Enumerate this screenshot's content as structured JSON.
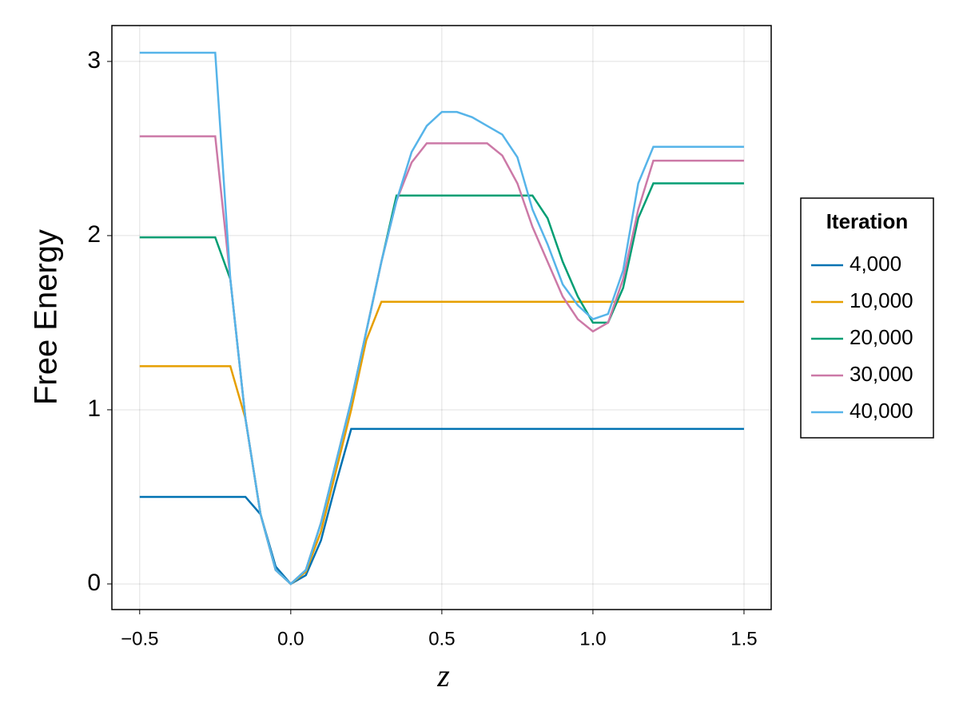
{
  "chart_data": {
    "type": "line",
    "xlabel": "z",
    "ylabel": "Free Energy",
    "legend_title": "Iteration",
    "legend": "right",
    "grid": true,
    "xlim": [
      -0.592,
      1.59
    ],
    "ylim": [
      -0.147,
      3.206
    ],
    "xticks": [
      {
        "value": -0.5,
        "label": "−0.5"
      },
      {
        "value": 0,
        "label": "0.0"
      },
      0.5,
      {
        "value": 1,
        "label": "1.0"
      },
      1.5
    ],
    "yticks": [
      0,
      1,
      2,
      3
    ],
    "x": [
      -0.5,
      -0.45,
      -0.4,
      -0.35,
      -0.3,
      -0.25,
      -0.2,
      -0.15,
      -0.1,
      -0.05,
      0,
      0.05,
      0.1,
      0.15,
      0.2,
      0.25,
      0.3,
      0.35,
      0.4,
      0.45,
      0.5,
      0.55,
      0.6,
      0.65,
      0.7,
      0.75,
      0.8,
      0.85,
      0.9,
      0.95,
      1.0,
      1.05,
      1.1,
      1.15,
      1.2,
      1.25,
      1.3,
      1.35,
      1.4,
      1.45,
      1.5
    ],
    "series": [
      {
        "name": "4,000",
        "color": "#0072b2",
        "values": [
          0.5,
          0.5,
          0.5,
          0.5,
          0.5,
          0.5,
          0.5,
          0.5,
          0.4,
          0.1,
          0,
          0.05,
          0.25,
          0.58,
          0.89,
          0.89,
          0.89,
          0.89,
          0.89,
          0.89,
          0.89,
          0.89,
          0.89,
          0.89,
          0.89,
          0.89,
          0.89,
          0.89,
          0.89,
          0.89,
          0.89,
          0.89,
          0.89,
          0.89,
          0.89,
          0.89,
          0.89,
          0.89,
          0.89,
          0.89,
          0.89
        ]
      },
      {
        "name": "10,000",
        "color": "#e69f00",
        "values": [
          1.25,
          1.25,
          1.25,
          1.25,
          1.25,
          1.25,
          1.25,
          0.95,
          0.4,
          0.08,
          0,
          0.07,
          0.3,
          0.65,
          1.0,
          1.4,
          1.62,
          1.62,
          1.62,
          1.62,
          1.62,
          1.62,
          1.62,
          1.62,
          1.62,
          1.62,
          1.62,
          1.62,
          1.62,
          1.62,
          1.62,
          1.62,
          1.62,
          1.62,
          1.62,
          1.62,
          1.62,
          1.62,
          1.62,
          1.62,
          1.62
        ]
      },
      {
        "name": "20,000",
        "color": "#009e73",
        "values": [
          1.99,
          1.99,
          1.99,
          1.99,
          1.99,
          1.99,
          1.75,
          0.95,
          0.4,
          0.08,
          0,
          0.08,
          0.35,
          0.7,
          1.05,
          1.45,
          1.85,
          2.23,
          2.23,
          2.23,
          2.23,
          2.23,
          2.23,
          2.23,
          2.23,
          2.23,
          2.23,
          2.1,
          1.85,
          1.65,
          1.5,
          1.5,
          1.7,
          2.1,
          2.3,
          2.3,
          2.3,
          2.3,
          2.3,
          2.3,
          2.3
        ]
      },
      {
        "name": "30,000",
        "color": "#cc79a7",
        "values": [
          2.57,
          2.57,
          2.57,
          2.57,
          2.57,
          2.57,
          1.75,
          0.95,
          0.4,
          0.08,
          0,
          0.08,
          0.35,
          0.7,
          1.05,
          1.45,
          1.85,
          2.2,
          2.42,
          2.53,
          2.53,
          2.53,
          2.53,
          2.53,
          2.46,
          2.3,
          2.05,
          1.85,
          1.65,
          1.52,
          1.45,
          1.5,
          1.75,
          2.15,
          2.43,
          2.43,
          2.43,
          2.43,
          2.43,
          2.43,
          2.43
        ]
      },
      {
        "name": "40,000",
        "color": "#56b4e9",
        "values": [
          3.05,
          3.05,
          3.05,
          3.05,
          3.05,
          3.05,
          1.75,
          0.95,
          0.4,
          0.08,
          0,
          0.08,
          0.35,
          0.7,
          1.05,
          1.45,
          1.85,
          2.2,
          2.48,
          2.63,
          2.71,
          2.71,
          2.68,
          2.63,
          2.58,
          2.45,
          2.15,
          1.95,
          1.72,
          1.6,
          1.52,
          1.55,
          1.8,
          2.3,
          2.51,
          2.51,
          2.51,
          2.51,
          2.51,
          2.51,
          2.51
        ]
      }
    ]
  }
}
